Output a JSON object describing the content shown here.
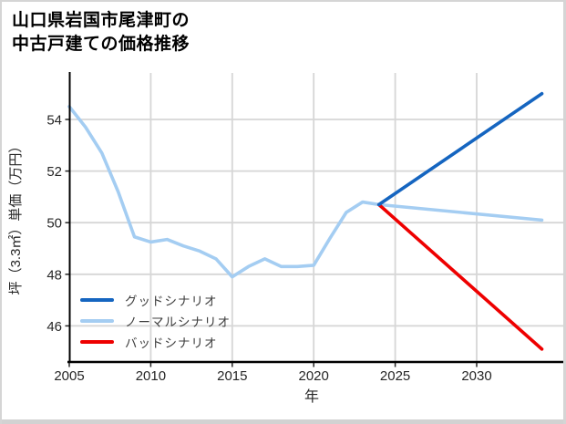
{
  "title": {
    "line1": "山口県岩国市尾津町の",
    "line2": "中古戸建ての価格推移"
  },
  "colors": {
    "good_blue": "#1565c0",
    "normal_light_blue": "#a4cdf2",
    "bad_red": "#ee0000",
    "grid": "#d6d6d6",
    "axis": "#000000",
    "tick_text": "#262626",
    "legend_text": "#3d3d3d",
    "frame": "#d5d5d5",
    "background": "#ffffff"
  },
  "chart_data": {
    "type": "line",
    "title": "山口県岩国市尾津町の中古戸建ての価格推移",
    "xlabel": "年",
    "ylabel": "坪（3.3㎡）単価（万円）",
    "x_ticks": [
      2005,
      2010,
      2015,
      2020,
      2025,
      2030
    ],
    "y_ticks": [
      46,
      48,
      50,
      52,
      54
    ],
    "xlim": [
      2005,
      2035.3
    ],
    "ylim": [
      44.6,
      55.8
    ],
    "grid": true,
    "legend_position": "lower-left",
    "series": [
      {
        "name": "グッドシナリオ",
        "color": "#1565c0",
        "x": [
          2024,
          2034
        ],
        "values": [
          50.7,
          55.0
        ]
      },
      {
        "name": "ノーマルシナリオ",
        "color": "#a4cdf2",
        "x": [
          2005,
          2006,
          2007,
          2008,
          2009,
          2010,
          2011,
          2012,
          2013,
          2014,
          2015,
          2016,
          2017,
          2018,
          2019,
          2020,
          2021,
          2022,
          2023,
          2024,
          2034
        ],
        "values": [
          54.5,
          53.7,
          52.7,
          51.2,
          49.45,
          49.25,
          49.35,
          49.1,
          48.9,
          48.6,
          47.9,
          48.3,
          48.6,
          48.3,
          48.3,
          48.35,
          49.4,
          50.4,
          50.8,
          50.7,
          50.1
        ]
      },
      {
        "name": "バッドシナリオ",
        "color": "#ee0000",
        "x": [
          2024,
          2034
        ],
        "values": [
          50.7,
          45.1
        ]
      }
    ]
  }
}
